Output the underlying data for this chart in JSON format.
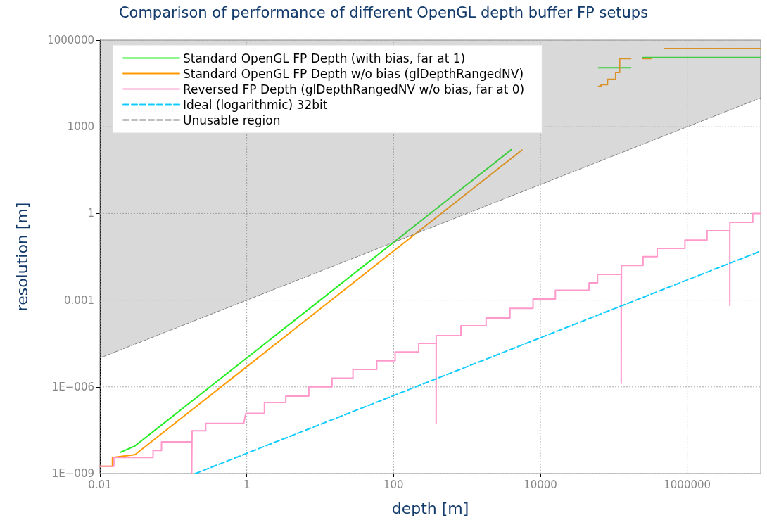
{
  "chart_data": {
    "type": "line",
    "title": "Comparison of performance of different OpenGL depth buffer FP setups",
    "xlabel": "depth [m]",
    "ylabel": "resolution [m]",
    "log": "xy",
    "xlim": [
      0.01,
      10000000
    ],
    "ylim": [
      1e-09,
      1000000
    ],
    "xticks": [
      0.01,
      1,
      100,
      10000,
      1000000
    ],
    "yticks": [
      {
        "value": 1e-09,
        "label": "1E−009"
      },
      {
        "value": 1e-06,
        "label": "1E−006"
      },
      0.001,
      1,
      1000,
      1000000
    ],
    "grid": true,
    "legend": "top left",
    "marker": "none",
    "series": [
      {
        "name": "Standard OpenGL FP Depth (with bias, far at 1)",
        "color": "#22ee22",
        "line_style": "solid",
        "x": [
          0.019,
          0.03,
          0.1,
          1,
          10,
          100,
          1000,
          4000
        ],
        "values": [
          5.4e-09,
          9e-09,
          1e-07,
          1e-05,
          0.001,
          0.1,
          10,
          160
        ]
      },
      {
        "color": "#22ee22",
        "line_style": "solid",
        "x": [
          62000,
          170000
        ],
        "values": [
          110000,
          110000
        ]
      },
      {
        "color": "#22ee22",
        "line_style": "solid",
        "x": [
          250000,
          10000000
        ],
        "values": [
          250000,
          250000
        ]
      },
      {
        "name": "Standard OpenGL FP Depth w/o bias (glDepthRangedNV)",
        "color": "#ff9900",
        "line_style": "solid",
        "x": [
          0.01,
          0.0148,
          0.0148,
          0.03,
          0.1,
          1,
          10,
          100,
          1000,
          5600
        ],
        "values": [
          1.78e-09,
          1.78e-09,
          3.6e-09,
          4.5e-09,
          5e-08,
          5e-06,
          0.0005,
          0.05,
          5,
          157
        ]
      },
      {
        "color": "#ff9900",
        "line_style": "solid",
        "x": [
          62000,
          67000,
          67000,
          82000,
          82000,
          106000,
          106000,
          120000,
          120000,
          170000
        ],
        "values": [
          25000,
          25000,
          29000,
          29000,
          44000,
          44000,
          76000,
          76000,
          230000,
          230000
        ]
      },
      {
        "color": "#ff9900",
        "line_style": "solid",
        "x": [
          250000,
          320000
        ],
        "values": [
          230000,
          230000
        ]
      },
      {
        "color": "#ff9900",
        "line_style": "solid",
        "x": [
          490000,
          10000000
        ],
        "values": [
          510000,
          510000
        ]
      },
      {
        "name": "Reversed FP Depth (glDepthRangedNV w/o bias, far at 0)",
        "color": "#ff99cc",
        "line_style": "solid",
        "x": [
          0.01,
          0.0155,
          0.0155,
          0.053,
          0.053,
          0.069,
          0.069,
          0.178,
          0.178,
          0.18,
          0.18,
          0.276,
          0.276,
          0.91,
          0.97,
          1.74,
          1.74,
          3.4,
          3.4,
          7,
          7,
          14.5,
          14.5,
          28,
          28,
          59,
          59,
          105,
          105,
          220,
          220,
          380,
          380,
          381,
          381,
          826,
          826,
          1820,
          1820,
          3850,
          3850,
          7940,
          7940,
          16000,
          16000,
          46000,
          46000,
          60000,
          60000,
          126000,
          126000,
          127000,
          127000,
          250000,
          250000,
          390000,
          390000,
          930000,
          930000,
          1860000,
          1860000,
          3800000,
          3800000,
          3810000,
          3810000,
          7800000,
          7800000,
          10000000
        ],
        "values": [
          1.78e-09,
          1.78e-09,
          3.6e-09,
          3.6e-09,
          6.3e-09,
          6.3e-09,
          1.25e-08,
          1.25e-08,
          1e-09,
          1e-09,
          3e-08,
          3e-08,
          5.4e-08,
          5.4e-08,
          1.2e-07,
          1.2e-07,
          2.9e-07,
          2.9e-07,
          4.8e-07,
          4.8e-07,
          1e-06,
          1e-06,
          2e-06,
          2e-06,
          4e-06,
          4e-06,
          8e-06,
          8e-06,
          1.6e-05,
          1.6e-05,
          3.2e-05,
          3.2e-05,
          5.4e-08,
          5.4e-08,
          5.9e-05,
          5.9e-05,
          0.00013,
          0.00013,
          0.00024,
          0.00024,
          0.00052,
          0.00052,
          0.0011,
          0.0011,
          0.0022,
          0.0022,
          0.004,
          0.004,
          0.0078,
          0.0078,
          1.3e-06,
          1.3e-06,
          0.016,
          0.016,
          0.032,
          0.032,
          0.062,
          0.062,
          0.12,
          0.12,
          0.25,
          0.25,
          0.00066,
          0.00066,
          0.49,
          0.49,
          1,
          1
        ]
      },
      {
        "name": "Ideal (logarithmic) 32bit",
        "color": "#11ccff",
        "line_style": "dashed",
        "x": [
          0.2,
          10000000
        ],
        "values": [
          1e-09,
          0.05
        ]
      },
      {
        "name": "Unusable region",
        "color": "#808080",
        "line_style": "dashed",
        "x": [
          0.01,
          10000000
        ],
        "values": [
          1e-05,
          10000
        ],
        "lower": [
          1e-05,
          10000
        ],
        "upper": [
          1000000,
          1000000
        ]
      }
    ]
  }
}
